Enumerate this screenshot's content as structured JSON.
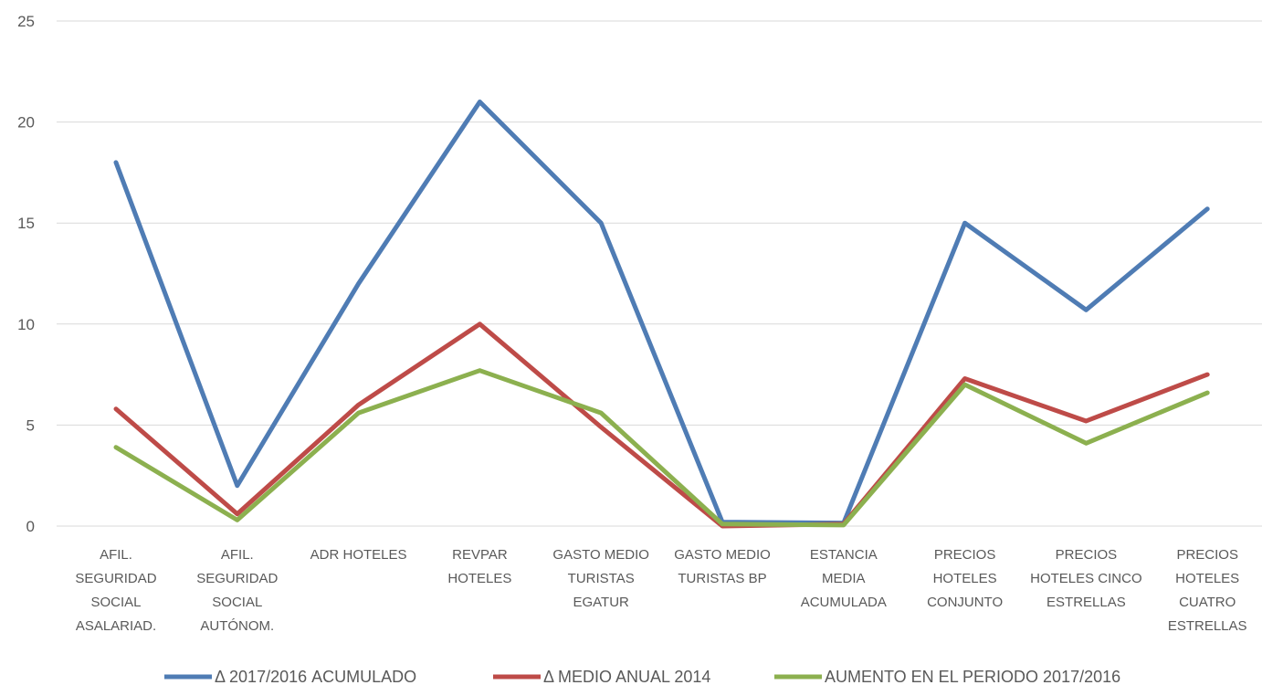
{
  "chart_data": {
    "type": "line",
    "title": "",
    "xlabel": "",
    "ylabel": "",
    "ylim": [
      0,
      25
    ],
    "yticks": [
      0,
      5,
      10,
      15,
      20,
      25
    ],
    "grid": true,
    "legend_position": "bottom",
    "categories": [
      [
        "AFIL.",
        "SEGURIDAD",
        "SOCIAL",
        "ASALARIAD."
      ],
      [
        "AFIL.",
        "SEGURIDAD",
        "SOCIAL",
        "AUTÓNOM."
      ],
      [
        "ADR HOTELES"
      ],
      [
        "REVPAR",
        "HOTELES"
      ],
      [
        "GASTO MEDIO",
        "TURISTAS",
        "EGATUR"
      ],
      [
        "GASTO MEDIO",
        "TURISTAS BP"
      ],
      [
        "ESTANCIA",
        "MEDIA",
        "ACUMULADA"
      ],
      [
        "PRECIOS",
        "HOTELES",
        "CONJUNTO"
      ],
      [
        "PRECIOS",
        "HOTELES CINCO",
        "ESTRELLAS"
      ],
      [
        "PRECIOS",
        "HOTELES",
        "CUATRO",
        "ESTRELLAS"
      ]
    ],
    "series": [
      {
        "name": "Δ  2017/2016 ACUMULADO",
        "color": "#4f7cb4",
        "values": [
          18,
          2,
          12,
          21,
          15,
          0.2,
          0.15,
          15,
          10.7,
          15.7
        ]
      },
      {
        "name": "Δ MEDIO ANUAL 2014",
        "color": "#be4b48",
        "values": [
          5.8,
          0.6,
          6,
          10,
          4.9,
          0,
          0.1,
          7.3,
          5.2,
          7.5
        ]
      },
      {
        "name": "AUMENTO EN EL PERIODO 2017/2016",
        "color": "#8cb04f",
        "values": [
          3.9,
          0.3,
          5.6,
          7.7,
          5.6,
          0.1,
          0.05,
          7,
          4.1,
          6.6
        ]
      }
    ],
    "grid_color": "#d9d9d9"
  }
}
